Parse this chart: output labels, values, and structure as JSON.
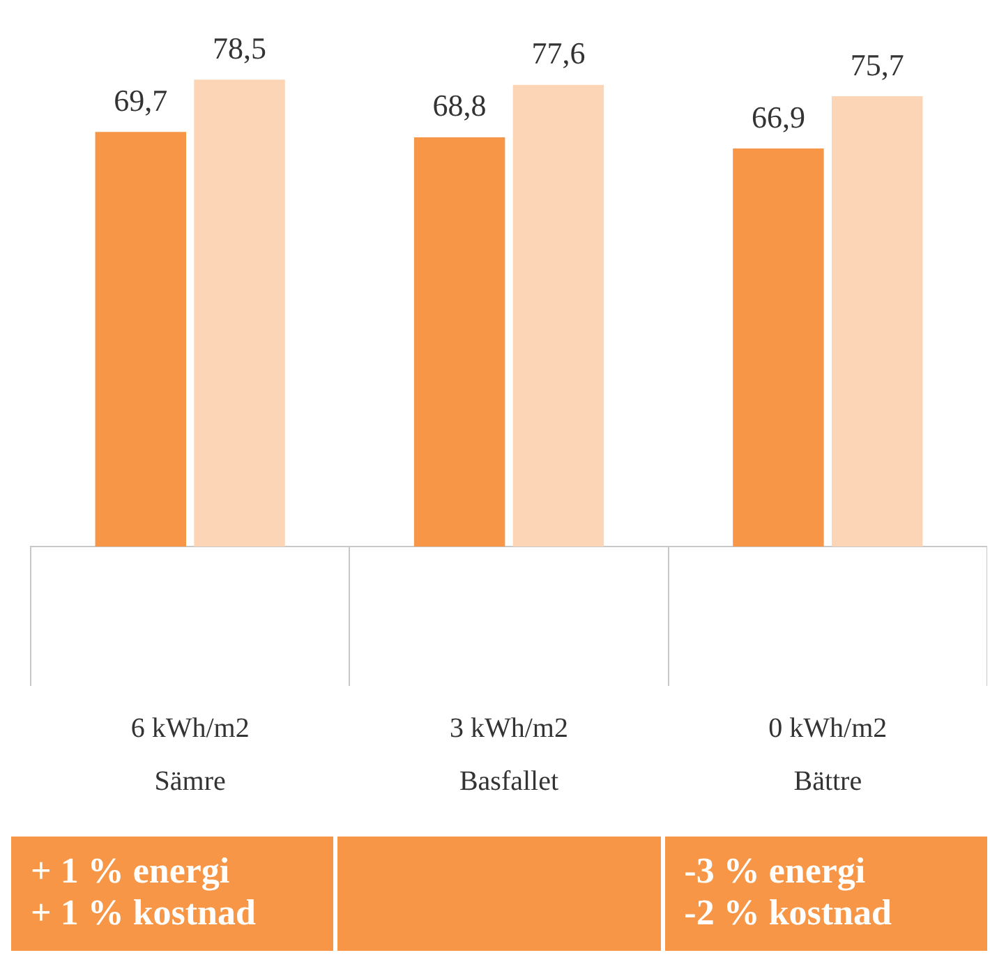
{
  "chart_data": {
    "type": "bar",
    "relative": false,
    "categories": [
      "6 kWh/m2\nSämre",
      "3 kWh/m2\nBasfallet",
      "0 kWh/m2\nBättre"
    ],
    "series": [
      {
        "color": "#f79646",
        "values": [
          69.7,
          68.8,
          66.9
        ],
        "value_labels": [
          "69,7",
          "68,8",
          "66,9"
        ]
      },
      {
        "color": "#fbd5b5",
        "values": [
          78.5,
          77.6,
          75.7
        ],
        "value_labels": [
          "78,5",
          "77,6",
          "75,7"
        ]
      }
    ],
    "annotations": [
      "+ 1 % energi\n+ 1 % kostnad",
      "-3 % energi\n-2 % kostnad"
    ],
    "grid": false,
    "legend": false
  }
}
